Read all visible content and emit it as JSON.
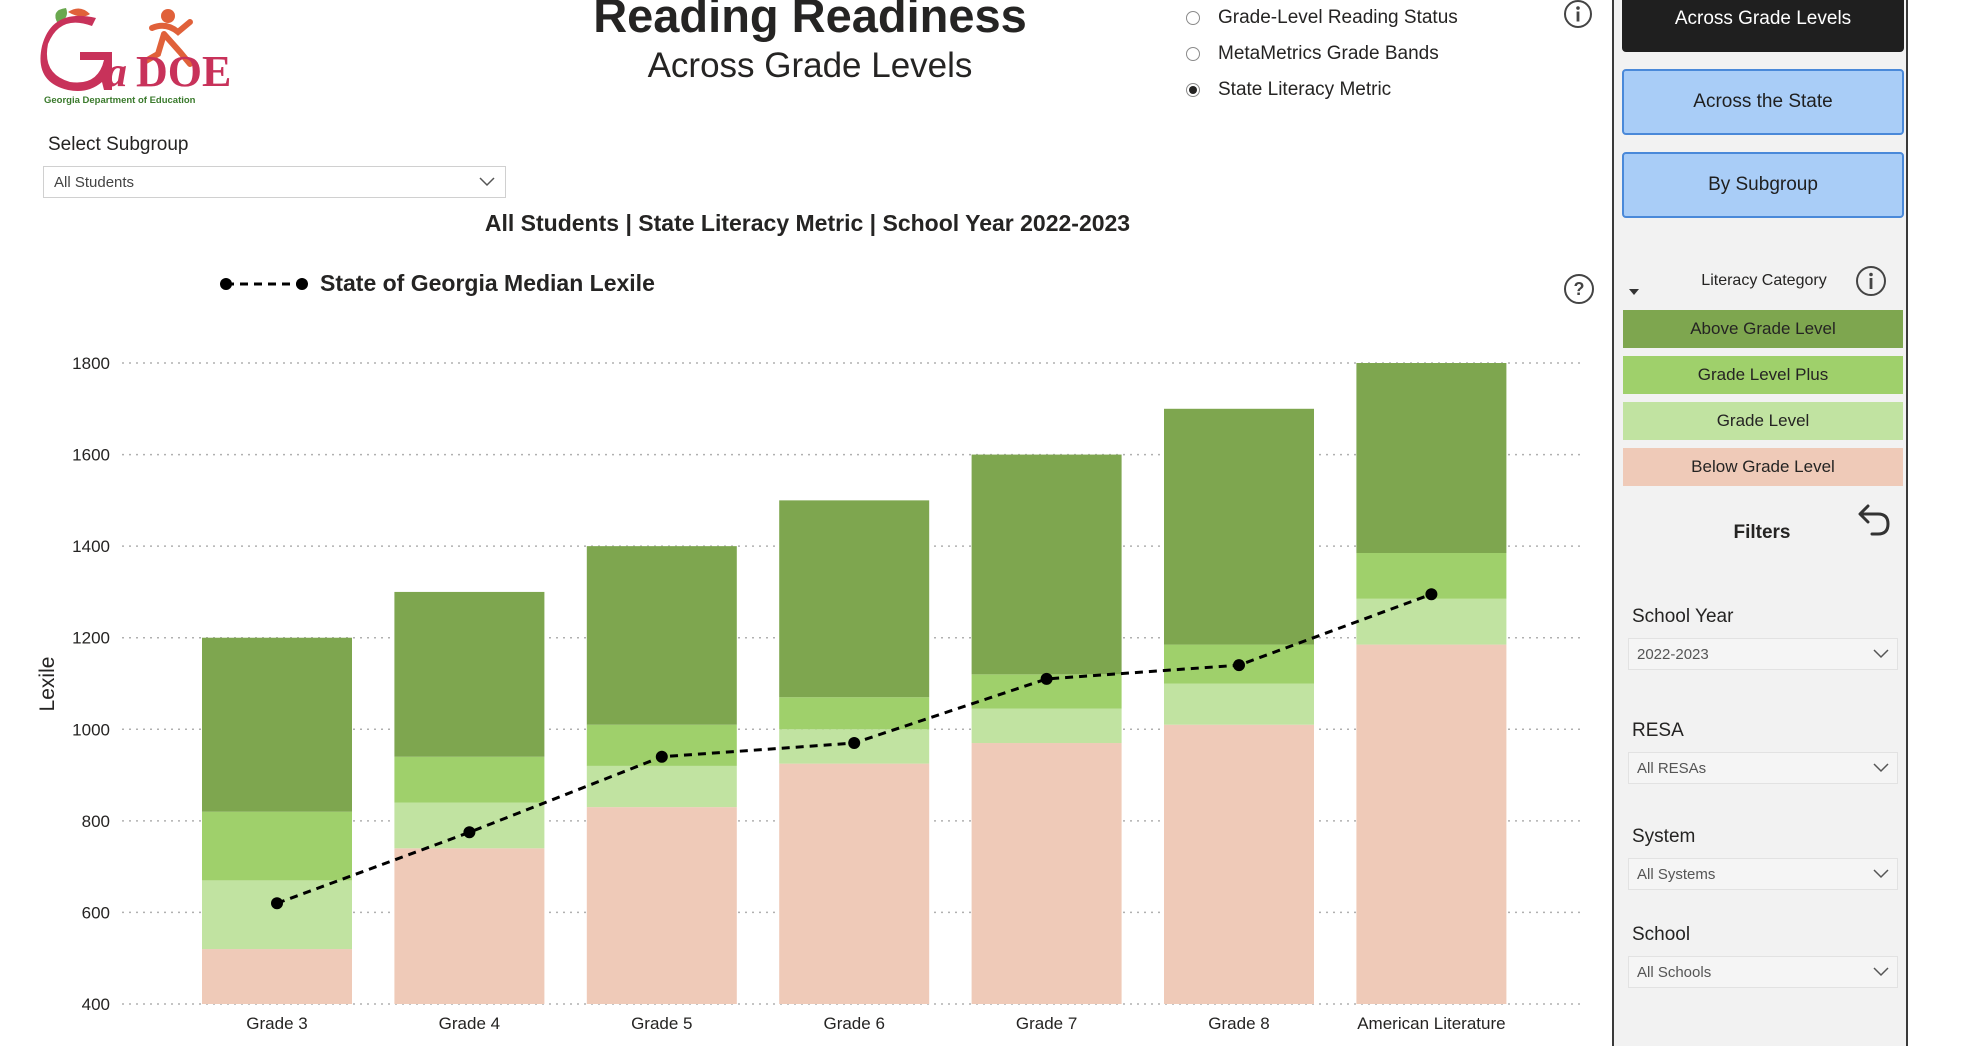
{
  "logo": {
    "text": "GaDOE",
    "tagline": "Georgia Department of Education"
  },
  "header": {
    "title": "Reading Readiness",
    "subtitle": "Across Grade Levels"
  },
  "view_options": [
    {
      "label": "Grade-Level Reading Status",
      "checked": false
    },
    {
      "label": "MetaMetrics Grade Bands",
      "checked": false
    },
    {
      "label": "State Literacy Metric",
      "checked": true
    }
  ],
  "subgroup": {
    "label": "Select Subgroup",
    "value": "All Students"
  },
  "chart_heading": "All Students | State Literacy Metric | School Year 2022-2023",
  "colors": {
    "above": "#7ea64f",
    "plus": "#9fd06b",
    "grade": "#c1e3a1",
    "below": "#efcab8",
    "median_line": "#000000",
    "grid": "#b0b0b0",
    "nav_active": "#1f1f1f",
    "nav_inactive": "#a9cdf7"
  },
  "chart_data": {
    "type": "bar",
    "stacked": true,
    "title": "All Students | State Literacy Metric | School Year 2022-2023",
    "xlabel": "",
    "ylabel": "Lexile",
    "ylim": [
      400,
      1800
    ],
    "yticks": [
      400,
      600,
      800,
      1000,
      1200,
      1400,
      1600,
      1800
    ],
    "grid": true,
    "categories": [
      "Grade 3",
      "Grade 4",
      "Grade 5",
      "Grade 6",
      "Grade 7",
      "Grade 8",
      "American Literature"
    ],
    "series": [
      {
        "key": "below",
        "name": "Below Grade Level",
        "bottoms": [
          400,
          400,
          400,
          400,
          400,
          400,
          400
        ],
        "tops": [
          520,
          740,
          830,
          925,
          970,
          1010,
          1185
        ]
      },
      {
        "key": "grade",
        "name": "Grade Level",
        "bottoms": [
          520,
          740,
          830,
          925,
          970,
          1010,
          1185
        ],
        "tops": [
          670,
          840,
          920,
          1000,
          1045,
          1100,
          1285
        ]
      },
      {
        "key": "plus",
        "name": "Grade Level Plus",
        "bottoms": [
          670,
          840,
          920,
          1000,
          1045,
          1100,
          1285
        ],
        "tops": [
          820,
          940,
          1010,
          1070,
          1120,
          1185,
          1385
        ]
      },
      {
        "key": "above",
        "name": "Above Grade Level",
        "bottoms": [
          820,
          940,
          1010,
          1070,
          1120,
          1185,
          1385
        ],
        "tops": [
          1200,
          1300,
          1400,
          1500,
          1600,
          1700,
          1800
        ]
      }
    ],
    "median_series": {
      "name": "State of Georgia Median Lexile",
      "values": [
        620,
        775,
        940,
        970,
        1110,
        1140,
        1295
      ]
    }
  },
  "panel": {
    "nav": [
      {
        "label": "Across Grade Levels",
        "active": true
      },
      {
        "label": "Across the State",
        "active": false
      },
      {
        "label": "By Subgroup",
        "active": false
      }
    ],
    "literacy_title": "Literacy Category",
    "categories": [
      {
        "label": "Above Grade Level",
        "key": "above"
      },
      {
        "label": "Grade Level Plus",
        "key": "plus"
      },
      {
        "label": "Grade Level",
        "key": "grade"
      },
      {
        "label": "Below Grade Level",
        "key": "below"
      }
    ],
    "filters_title": "Filters",
    "filters": [
      {
        "label": "School Year",
        "value": "2022-2023"
      },
      {
        "label": "RESA",
        "value": "All RESAs"
      },
      {
        "label": "System",
        "value": "All Systems"
      },
      {
        "label": "School",
        "value": "All Schools"
      }
    ]
  },
  "icons": {
    "info": "info-icon",
    "help": "help-icon",
    "undo": "undo-icon",
    "chevron": "chevron-down-icon",
    "caret": "caret-down-icon"
  }
}
